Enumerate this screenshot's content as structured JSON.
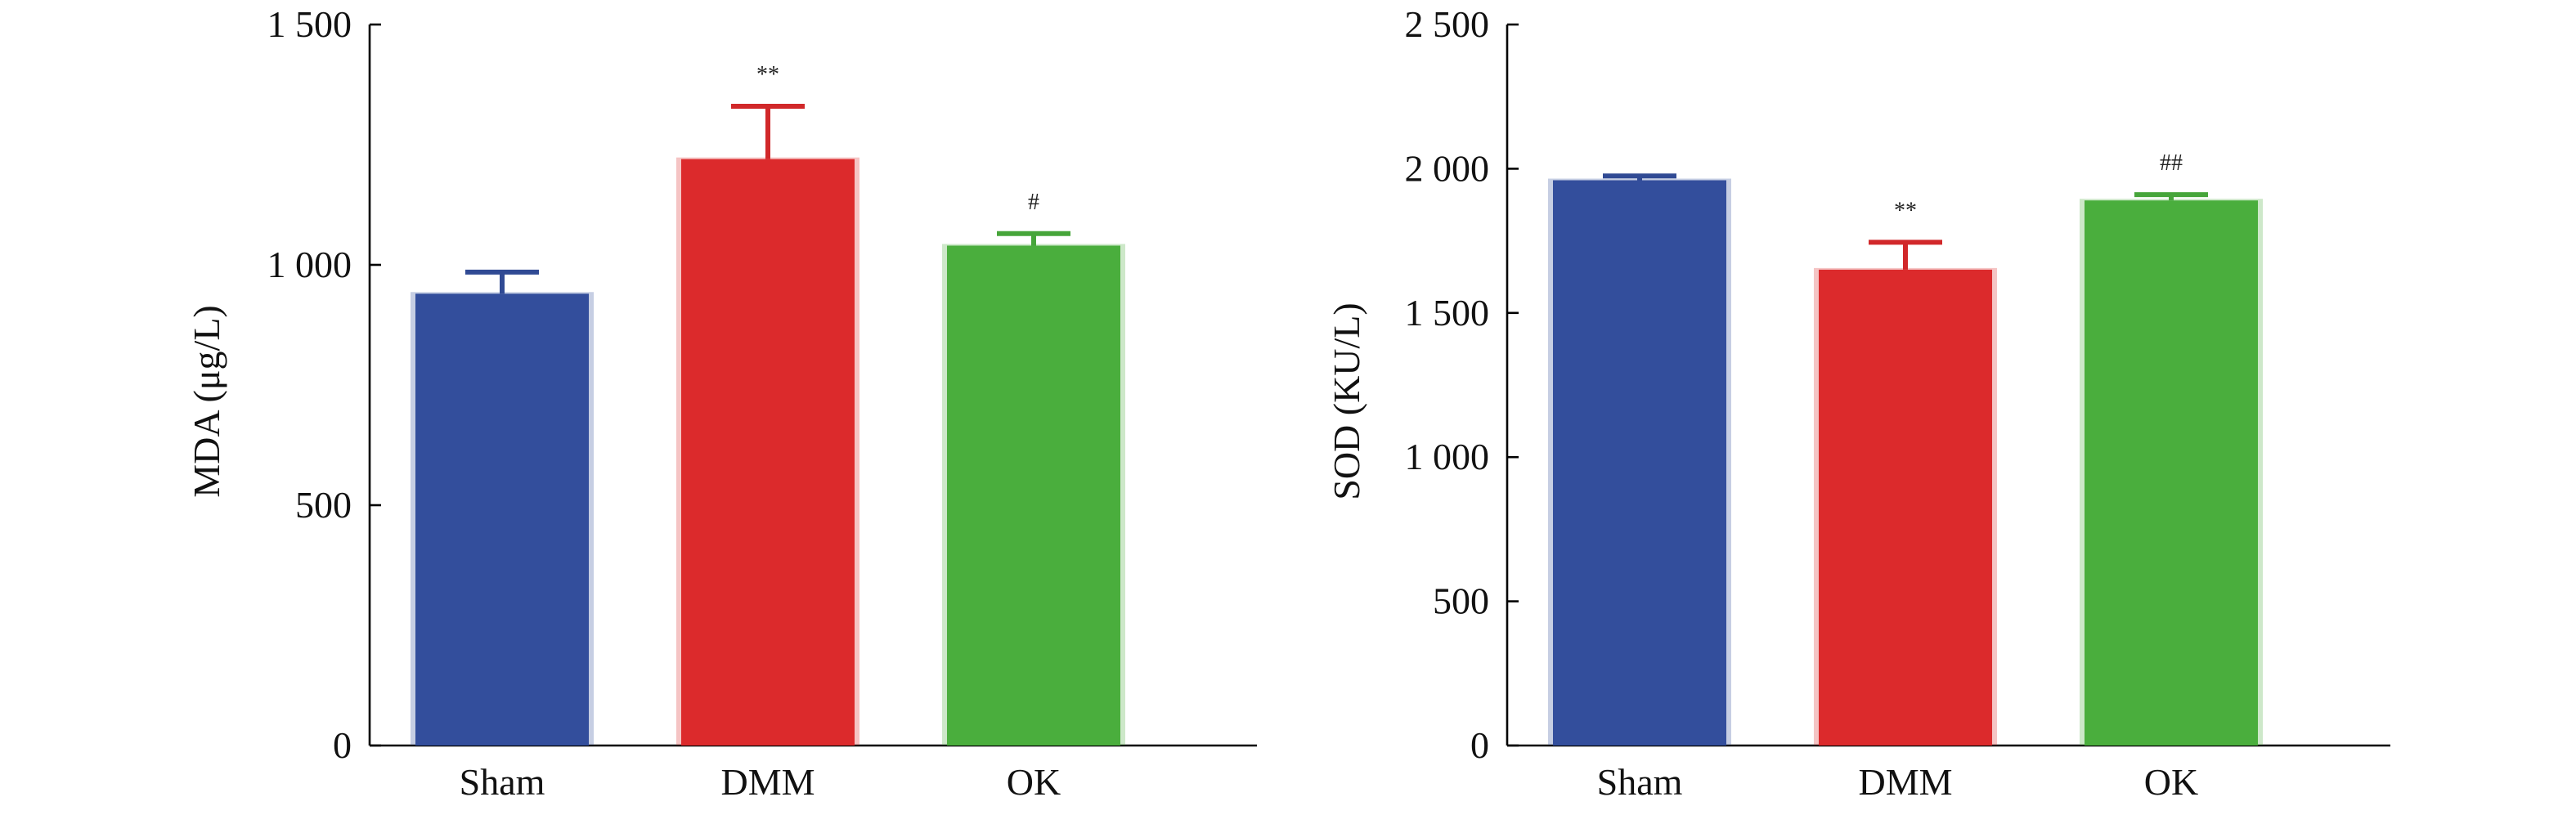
{
  "chart_data": [
    {
      "type": "bar",
      "ylabel": "MDA (μg/L)",
      "xlabel": "",
      "ylim": [
        0,
        1500
      ],
      "yticks": [
        0,
        500,
        1000,
        1500
      ],
      "ytick_labels": [
        "0",
        "500",
        "1 000",
        "1 500"
      ],
      "categories": [
        "Sham",
        "DMM",
        "OK"
      ],
      "values": [
        940,
        1220,
        1040
      ],
      "errors": [
        45,
        110,
        25
      ],
      "colors": [
        "#334e9c",
        "#dc2a2c",
        "#4aae3d"
      ],
      "significance": [
        "",
        "**",
        "#"
      ]
    },
    {
      "type": "bar",
      "ylabel": "SOD (KU/L)",
      "xlabel": "",
      "ylim": [
        0,
        2500
      ],
      "yticks": [
        0,
        500,
        1000,
        1500,
        2000,
        2500
      ],
      "ytick_labels": [
        "0",
        "500",
        "1 000",
        "1 500",
        "2 000",
        "2 500"
      ],
      "categories": [
        "Sham",
        "DMM",
        "OK"
      ],
      "values": [
        1960,
        1650,
        1890
      ],
      "errors": [
        15,
        95,
        20
      ],
      "colors": [
        "#334e9c",
        "#dc2a2c",
        "#4aae3d"
      ],
      "significance": [
        "",
        "**",
        "##"
      ]
    }
  ]
}
